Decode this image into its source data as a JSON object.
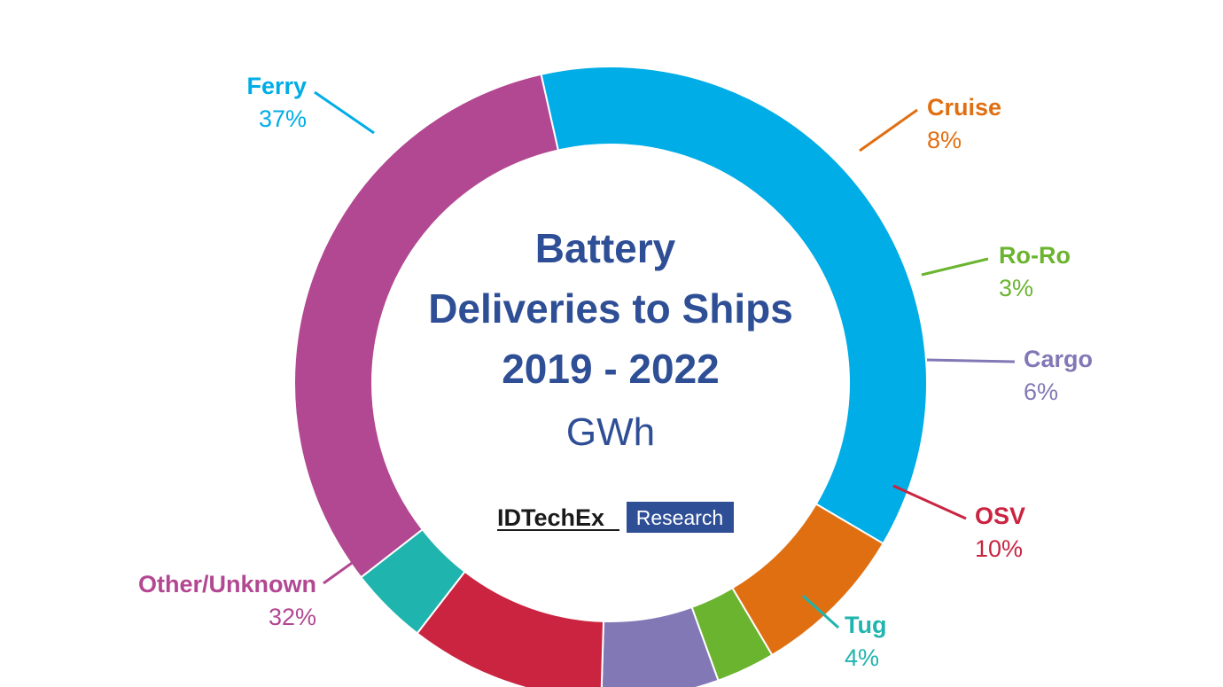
{
  "chart_data": {
    "type": "pie",
    "style": "donut",
    "title_lines": [
      "Battery",
      "Deliveries to Ships",
      "2019 - 2022"
    ],
    "unit": "GWh",
    "categories": [
      "Ferry",
      "Cruise",
      "Ro-Ro",
      "Cargo",
      "OSV",
      "Tug",
      "Other/Unknown"
    ],
    "values": [
      37,
      8,
      3,
      6,
      10,
      4,
      32
    ],
    "value_labels": [
      "37%",
      "8%",
      "3%",
      "6%",
      "10%",
      "4%",
      "32%"
    ],
    "colors": [
      "#00ADE6",
      "#E06F12",
      "#6BB42F",
      "#8278B6",
      "#CA2441",
      "#20B4AE",
      "#B24792"
    ],
    "legend": "callouts"
  },
  "colors": {
    "title": "#2E4E96",
    "logo_box": "#2E4E96",
    "logo_text": "#1a1a1a"
  },
  "logo": {
    "name": "IDTechEx",
    "tag": "Research"
  }
}
